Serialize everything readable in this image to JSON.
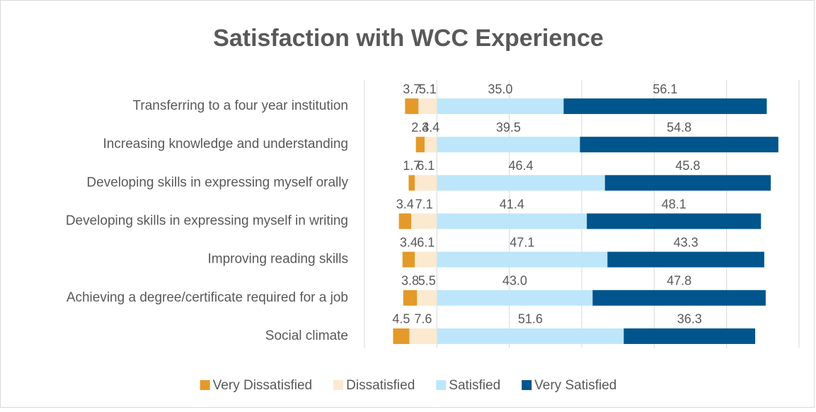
{
  "chart_data": {
    "type": "diverging_bar",
    "title": "Satisfaction with WCC Experience",
    "categories": [
      "Transferring to a four year institution",
      "Increasing knowledge and understanding",
      "Developing skills in expressing myself orally",
      "Developing skills in expressing myself in writing",
      "Improving reading skills",
      "Achieving a degree/certificate required for a job",
      "Social climate"
    ],
    "series": [
      {
        "name": "Very Dissatisfied",
        "color": "#e39a2a",
        "values": [
          3.7,
          2.4,
          1.7,
          3.4,
          3.4,
          3.8,
          4.5
        ],
        "value_labels": [
          "3.7",
          "2.4",
          "1.7",
          "3.4",
          "3.4",
          "3.8",
          "4.5"
        ]
      },
      {
        "name": "Dissatisfied",
        "color": "#fbe9d0",
        "values": [
          5.1,
          3.4,
          6.1,
          7.1,
          6.1,
          5.5,
          7.6
        ],
        "value_labels": [
          "5.1",
          "3.4",
          "6.1",
          "7.1",
          "6.1",
          "5.5",
          "7.6"
        ]
      },
      {
        "name": "Satisfied",
        "color": "#bde6fb",
        "values": [
          35.0,
          39.5,
          46.4,
          41.4,
          47.1,
          43.0,
          51.6
        ],
        "value_labels": [
          "35.0",
          "39.5",
          "46.4",
          "41.4",
          "47.1",
          "43.0",
          "51.6"
        ]
      },
      {
        "name": "Very Satisfied",
        "color": "#00558c",
        "values": [
          56.1,
          54.8,
          45.8,
          48.1,
          43.3,
          47.8,
          36.3
        ],
        "value_labels": [
          "56.1",
          "54.8",
          "45.8",
          "48.1",
          "43.3",
          "47.8",
          "36.3"
        ]
      }
    ],
    "xlim": [
      -20,
      100
    ],
    "xticks": [
      -20,
      0,
      20,
      40,
      60,
      80,
      100
    ],
    "grid": true,
    "legend": "bottom"
  }
}
